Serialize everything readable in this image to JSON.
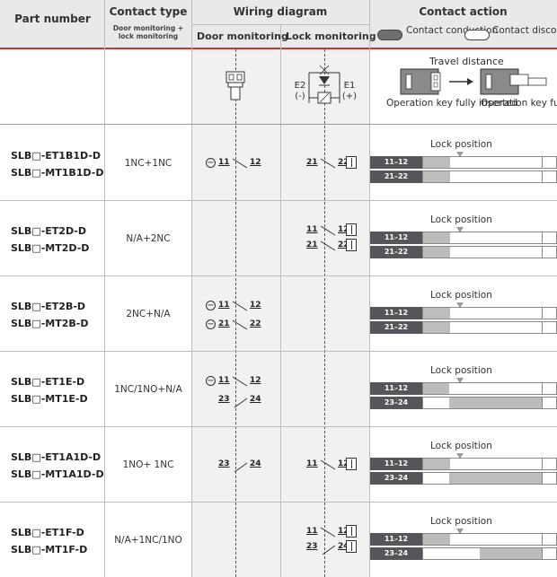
{
  "header": {
    "part_number": "Part number",
    "contact_type": "Contact type",
    "contact_type_sub": "Door monitoring + lock monitoring",
    "wiring_diagram": "Wiring diagram",
    "door_monitoring": "Door monitoring",
    "lock_monitoring": "Lock monitoring",
    "contact_action": "Contact action",
    "legend_conduction": "Contact conduction",
    "legend_disconnection": "Contact disconnection"
  },
  "diagram_row": {
    "e2": "E2",
    "e2_sign": "(-)",
    "e1": "E1",
    "e1_sign": "(+)",
    "travel_distance": "Travel distance",
    "inserted": "Operation key fully inserted",
    "removed": "Operation key fully removed"
  },
  "lock_position_label": "Lock position",
  "rows": [
    {
      "part1": "SLB□-ET1B1D-D",
      "part2": "SLB□-MT1B1D-D",
      "contact_type": "1NC+1NC",
      "door": [
        {
          "t1": "11",
          "t2": "12",
          "type": "NC",
          "pos": true
        }
      ],
      "lock": [
        {
          "t1": "21",
          "t2": "22",
          "type": "NC"
        }
      ],
      "bars": [
        {
          "label": "11–12",
          "pattern": "nc"
        },
        {
          "label": "21–22",
          "pattern": "nc"
        }
      ]
    },
    {
      "part1": "SLB□-ET2D-D",
      "part2": "SLB□-MT2D-D",
      "contact_type": "N/A+2NC",
      "door": [],
      "lock": [
        {
          "t1": "11",
          "t2": "12",
          "type": "NC"
        },
        {
          "t1": "21",
          "t2": "22",
          "type": "NC"
        }
      ],
      "bars": [
        {
          "label": "11–12",
          "pattern": "nc"
        },
        {
          "label": "21–22",
          "pattern": "nc"
        }
      ]
    },
    {
      "part1": "SLB□-ET2B-D",
      "part2": "SLB□-MT2B-D",
      "contact_type": "2NC+N/A",
      "door": [
        {
          "t1": "11",
          "t2": "12",
          "type": "NC",
          "pos": true
        },
        {
          "t1": "21",
          "t2": "22",
          "type": "NC",
          "pos": true
        }
      ],
      "lock": [],
      "bars": [
        {
          "label": "11–12",
          "pattern": "nc"
        },
        {
          "label": "21–22",
          "pattern": "nc"
        }
      ]
    },
    {
      "part1": "SLB□-ET1E-D",
      "part2": "SLB□-MT1E-D",
      "contact_type": "1NC/1NO+N/A",
      "door": [
        {
          "t1": "11",
          "t2": "12",
          "type": "NC",
          "pos": true
        },
        {
          "t1": "23",
          "t2": "24",
          "type": "NO",
          "pos": false
        }
      ],
      "lock": [],
      "bars": [
        {
          "label": "11–12",
          "pattern": "nc_door"
        },
        {
          "label": "23–24",
          "pattern": "no_door"
        }
      ]
    },
    {
      "part1": "SLB□-ET1A1D-D",
      "part2": "SLB□-MT1A1D-D",
      "contact_type": "1NO+ 1NC",
      "door": [
        {
          "t1": "23",
          "t2": "24",
          "type": "NO",
          "pos": false
        }
      ],
      "lock": [
        {
          "t1": "11",
          "t2": "12",
          "type": "NC"
        }
      ],
      "bars": [
        {
          "label": "11–12",
          "pattern": "nc"
        },
        {
          "label": "23–24",
          "pattern": "no_door"
        }
      ]
    },
    {
      "part1": "SLB□-ET1F-D",
      "part2": "SLB□-MT1F-D",
      "contact_type": "N/A+1NC/1NO",
      "door": [],
      "lock": [
        {
          "t1": "11",
          "t2": "12",
          "type": "NC"
        },
        {
          "t1": "23",
          "t2": "24",
          "type": "NO"
        }
      ],
      "bars": [
        {
          "label": "11–12",
          "pattern": "nc"
        },
        {
          "label": "23–24",
          "pattern": "no_lock"
        }
      ]
    }
  ],
  "colors": {
    "header_bg": "#e9e9e9",
    "header_rule": "#cc3333",
    "bar_label_bg": "#55565a",
    "bar_on": "#bdbdbd",
    "shade": "#f1f1f1"
  }
}
